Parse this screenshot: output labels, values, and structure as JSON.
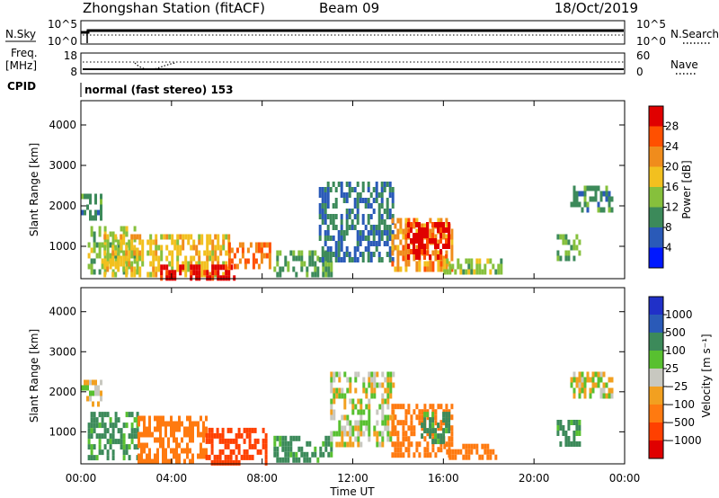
{
  "header": {
    "station": "Zhongshan Station (fitACF)",
    "beam": "Beam 09",
    "date": "18/Oct/2019"
  },
  "summary_panels": {
    "nsky": {
      "label": "N.Sky",
      "ticks": [
        "10^5",
        "10^0"
      ]
    },
    "nsearch": {
      "label": "N.Search",
      "ticks": [
        "10^5",
        "10^0"
      ]
    },
    "freq": {
      "label_top": "Freq.",
      "label_bottom": "[MHz]",
      "ticks": [
        "18",
        "8"
      ]
    },
    "nave": {
      "label": "Nave",
      "ticks": [
        "60",
        "0"
      ]
    },
    "cpid": {
      "label": "CPID",
      "text": "normal (fast stereo) 153"
    }
  },
  "chart_data": [
    {
      "type": "heatmap",
      "panel": "power",
      "xlabel": "",
      "ylabel": "Slant Range [km]",
      "xlim": [
        "00:00",
        "24:00"
      ],
      "ylim": [
        200,
        4600
      ],
      "y_ticks": [
        "4000",
        "3000",
        "2000",
        "1000"
      ],
      "colorbar": {
        "label": "Power [dB]",
        "ticks": [
          "28",
          "24",
          "20",
          "16",
          "12",
          "8",
          "4"
        ],
        "colors": [
          "#e00000",
          "#ff5000",
          "#f08c1c",
          "#f2c01f",
          "#86c03c",
          "#3c8a5a",
          "#2a5ab8",
          "#0018ff"
        ]
      },
      "echo_regions": [
        {
          "t0": 0.0,
          "t1": 0.9,
          "r0": 1700,
          "r1": 2300,
          "level": 8
        },
        {
          "t0": 0.3,
          "t1": 2.5,
          "r0": 400,
          "r1": 1500,
          "level": 12
        },
        {
          "t0": 1.0,
          "t1": 6.5,
          "r0": 300,
          "r1": 1300,
          "level": 16
        },
        {
          "t0": 3.5,
          "t1": 6.8,
          "r0": 200,
          "r1": 550,
          "level": 28
        },
        {
          "t0": 6.5,
          "t1": 8.3,
          "r0": 500,
          "r1": 1100,
          "level": 22
        },
        {
          "t0": 8.5,
          "t1": 11.0,
          "r0": 300,
          "r1": 900,
          "level": 10
        },
        {
          "t0": 10.5,
          "t1": 13.8,
          "r0": 600,
          "r1": 2600,
          "level": 6
        },
        {
          "t0": 13.7,
          "t1": 16.4,
          "r0": 400,
          "r1": 1700,
          "level": 20
        },
        {
          "t0": 14.4,
          "t1": 16.2,
          "r0": 700,
          "r1": 1600,
          "level": 28
        },
        {
          "t0": 16.0,
          "t1": 18.6,
          "r0": 350,
          "r1": 700,
          "level": 12
        },
        {
          "t0": 21.0,
          "t1": 22.0,
          "r0": 700,
          "r1": 1300,
          "level": 10
        },
        {
          "t0": 21.6,
          "t1": 23.4,
          "r0": 1900,
          "r1": 2500,
          "level": 8
        }
      ]
    },
    {
      "type": "heatmap",
      "panel": "velocity",
      "xlabel": "Time UT",
      "ylabel": "Slant Range [km]",
      "xlim": [
        "00:00",
        "24:00"
      ],
      "ylim": [
        200,
        4600
      ],
      "x_ticks": [
        "00:00",
        "04:00",
        "08:00",
        "12:00",
        "16:00",
        "20:00",
        "00:00"
      ],
      "y_ticks": [
        "4000",
        "3000",
        "2000",
        "1000"
      ],
      "colorbar": {
        "label": "Velocity [m s⁻¹]",
        "ticks": [
          "1000",
          "500",
          "100",
          "25",
          "−25",
          "−100",
          "−500",
          "−1000"
        ],
        "colors": [
          "#2030c8",
          "#2a5ab8",
          "#3c8a5a",
          "#58c030",
          "#c8c8c0",
          "#f2a020",
          "#ff7a10",
          "#ff4000",
          "#e00000"
        ]
      },
      "echo_regions": [
        {
          "t0": 0.0,
          "t1": 0.9,
          "r0": 1700,
          "r1": 2300,
          "level": 0
        },
        {
          "t0": 0.3,
          "t1": 2.5,
          "r0": 300,
          "r1": 1500,
          "level": 150
        },
        {
          "t0": 2.5,
          "t1": 5.5,
          "r0": 300,
          "r1": 1400,
          "level": -300
        },
        {
          "t0": 5.5,
          "t1": 8.2,
          "r0": 200,
          "r1": 1100,
          "level": -600
        },
        {
          "t0": 8.5,
          "t1": 11.0,
          "r0": 300,
          "r1": 900,
          "level": 150
        },
        {
          "t0": 11.0,
          "t1": 13.8,
          "r0": 700,
          "r1": 2500,
          "level": 0
        },
        {
          "t0": 13.7,
          "t1": 16.4,
          "r0": 400,
          "r1": 1700,
          "level": -300
        },
        {
          "t0": 15.0,
          "t1": 16.3,
          "r0": 700,
          "r1": 1500,
          "level": 150
        },
        {
          "t0": 16.0,
          "t1": 18.6,
          "r0": 300,
          "r1": 700,
          "level": -300
        },
        {
          "t0": 21.0,
          "t1": 22.0,
          "r0": 700,
          "r1": 1300,
          "level": 150
        },
        {
          "t0": 21.6,
          "t1": 23.4,
          "r0": 1900,
          "r1": 2500,
          "level": 0
        }
      ]
    }
  ]
}
